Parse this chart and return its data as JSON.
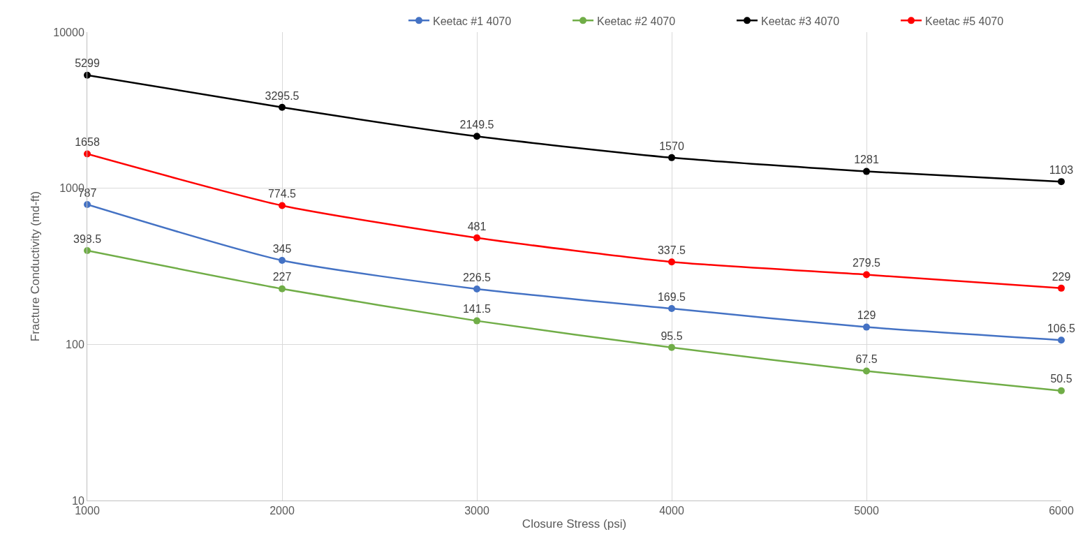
{
  "chart_data": {
    "type": "line",
    "xlabel": "Closure Stress (psi)",
    "ylabel": "Fracture Conductivity (md-ft)",
    "x": [
      1000,
      2000,
      3000,
      4000,
      5000,
      6000
    ],
    "series": [
      {
        "name": "Keetac #1 4070",
        "color": "#4472c4",
        "values": [
          787,
          345,
          226.5,
          169.5,
          129,
          106.5
        ]
      },
      {
        "name": "Keetac #2 4070",
        "color": "#70ad47",
        "values": [
          398.5,
          227,
          141.5,
          95.5,
          67.5,
          50.5
        ]
      },
      {
        "name": "Keetac #3 4070",
        "color": "#000000",
        "values": [
          5299,
          3295.5,
          2149.5,
          1570,
          1281,
          1103
        ]
      },
      {
        "name": "Keetac #5 4070",
        "color": "#ff0000",
        "values": [
          1658,
          774.5,
          481,
          337.5,
          279.5,
          229
        ]
      }
    ],
    "xlim": [
      1000,
      6000
    ],
    "xticks": [
      1000,
      2000,
      3000,
      4000,
      5000,
      6000
    ],
    "ylim": [
      10,
      10000
    ],
    "yticks": [
      10,
      100,
      1000,
      10000
    ],
    "log": true,
    "grid": true,
    "legend": "top right",
    "marker": "circle",
    "line_style": "solid",
    "data_labels": true
  }
}
